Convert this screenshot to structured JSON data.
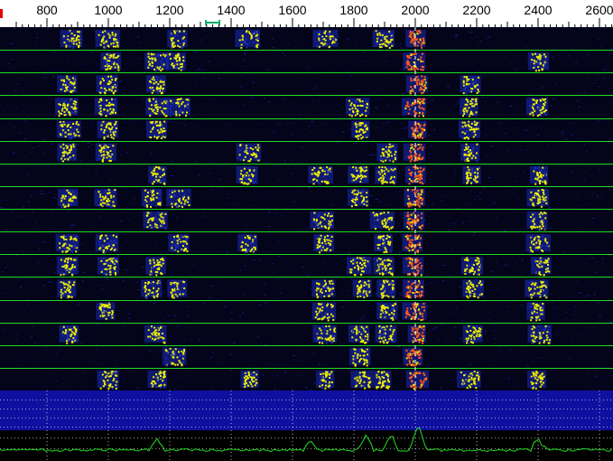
{
  "scale": {
    "unit": "Hz",
    "tick_labels": [
      "800",
      "1000",
      "1200",
      "1400",
      "1600",
      "1800",
      "2000",
      "2200",
      "2400",
      "2600"
    ],
    "colors": {
      "background": "#ffffff",
      "text": "#000000",
      "tx_marker": "#00aa66",
      "rx_marker": "#e00000"
    }
  },
  "waterfall": {
    "rows": 16,
    "colors": {
      "background": "#04041a",
      "weak": "#1a2bb8",
      "medium": "#f0f000",
      "strong": "#ff5a1a",
      "separator": "#22dd22",
      "rx_line": "#ffffff"
    },
    "signal_centers_hz": [
      870,
      1000,
      1150,
      1220,
      1460,
      1700,
      1820,
      1900,
      2000,
      2180,
      2400
    ]
  },
  "spectrum": {
    "colors": {
      "background": "#000000",
      "band": "#1010a0",
      "grid": "#ffffff",
      "trace": "#22dd22"
    },
    "peaks_hz": [
      1160,
      1660,
      1840,
      1920,
      2010,
      2400
    ]
  }
}
